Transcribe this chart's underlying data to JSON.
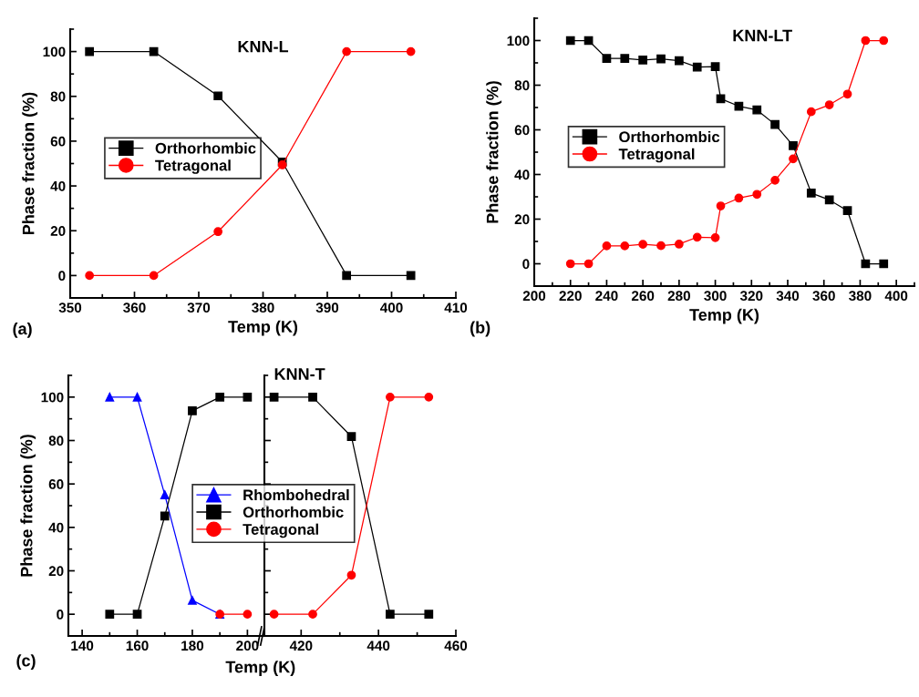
{
  "chart_data": [
    {
      "type": "line",
      "title": "KNN-L",
      "xlabel": "Temp (K)",
      "ylabel": "Phase fraction (%)",
      "annotations": [
        "(a)"
      ],
      "xlim": [
        350,
        410
      ],
      "xticks": [
        350,
        360,
        370,
        380,
        390,
        400,
        410
      ],
      "ylim": [
        -10,
        110
      ],
      "yticks": [
        0,
        20,
        40,
        60,
        80,
        100
      ],
      "legend": "center left",
      "grid": false,
      "x": [
        353,
        363,
        373,
        383,
        393,
        403
      ],
      "series": [
        {
          "name": "Orthorhombic",
          "color": "#000000",
          "marker": "square",
          "values": [
            100,
            100,
            80.2,
            50.7,
            0,
            0
          ]
        },
        {
          "name": "Tetragonal",
          "color": "#ff0000",
          "marker": "circle",
          "values": [
            0,
            0,
            19.6,
            49.4,
            100,
            100
          ]
        }
      ]
    },
    {
      "type": "line",
      "title": "KNN-LT",
      "xlabel": "Temp (K)",
      "ylabel": "Phase fraction (%)",
      "annotations": [
        "(b)"
      ],
      "xlim": [
        200,
        410
      ],
      "xticks": [
        200,
        220,
        240,
        260,
        280,
        300,
        320,
        340,
        360,
        380,
        400
      ],
      "ylim": [
        -10,
        110
      ],
      "yticks": [
        0,
        20,
        40,
        60,
        80,
        100
      ],
      "legend": "center left",
      "grid": false,
      "x": [
        220,
        230,
        240,
        250,
        260,
        270,
        280,
        290,
        300,
        303,
        313,
        323,
        333,
        343,
        353,
        363,
        373,
        383,
        393
      ],
      "series": [
        {
          "name": "Orthorhombic",
          "color": "#000000",
          "marker": "square",
          "values": [
            100,
            100,
            92,
            92,
            91.3,
            91.8,
            91,
            88.1,
            88.3,
            73.9,
            70.6,
            68.9,
            62.4,
            52.9,
            31.7,
            28.6,
            23.8,
            0,
            0
          ]
        },
        {
          "name": "Tetragonal",
          "color": "#ff0000",
          "marker": "circle",
          "values": [
            0,
            0,
            8,
            8,
            8.7,
            8.1,
            8.8,
            11.9,
            11.7,
            25.9,
            29.4,
            31.1,
            37.4,
            47,
            68.1,
            71.2,
            76,
            100,
            100
          ]
        }
      ]
    },
    {
      "type": "line",
      "ylabel": "Phase fraction (%)",
      "annotations": [
        "(c)"
      ],
      "xlim": [
        135,
        205.5
      ],
      "xticks": [
        140,
        160,
        180,
        200
      ],
      "ylim": [
        -10,
        110
      ],
      "yticks": [
        0,
        20,
        40,
        60,
        80,
        100
      ],
      "legend": "center right",
      "grid": false,
      "series": [
        {
          "name": "Rhombohedral",
          "color": "#0000ff",
          "marker": "triangle",
          "x": [
            150,
            160,
            170,
            180,
            190
          ],
          "values": [
            100,
            100,
            55,
            6.4,
            0
          ]
        },
        {
          "name": "Orthorhombic",
          "color": "#000000",
          "marker": "square",
          "x": [
            150,
            160,
            170,
            180,
            190,
            200
          ],
          "values": [
            0,
            0,
            45.2,
            93.7,
            100,
            100
          ]
        },
        {
          "name": "Tetragonal",
          "color": "#ff0000",
          "marker": "circle",
          "x": [
            190,
            200
          ],
          "values": [
            0,
            0
          ]
        }
      ]
    },
    {
      "type": "line",
      "title": "KNN-T",
      "xlabel": "Temp (K)",
      "xlim": [
        410.5,
        460
      ],
      "xticks": [
        420,
        440,
        460
      ],
      "ylim": [
        -10,
        110
      ],
      "yticks": [
        0,
        20,
        40,
        60,
        80,
        100
      ],
      "tick_labels": "x",
      "grid": false,
      "series": [
        {
          "color": "#000000",
          "marker": "square",
          "x": [
            413,
            423,
            433,
            443,
            453
          ],
          "values": [
            100,
            100,
            81.8,
            0,
            0
          ]
        },
        {
          "color": "#ff0000",
          "marker": "circle",
          "x": [
            413,
            423,
            433,
            443,
            453
          ],
          "values": [
            0,
            0,
            18,
            100,
            100
          ]
        }
      ]
    }
  ]
}
